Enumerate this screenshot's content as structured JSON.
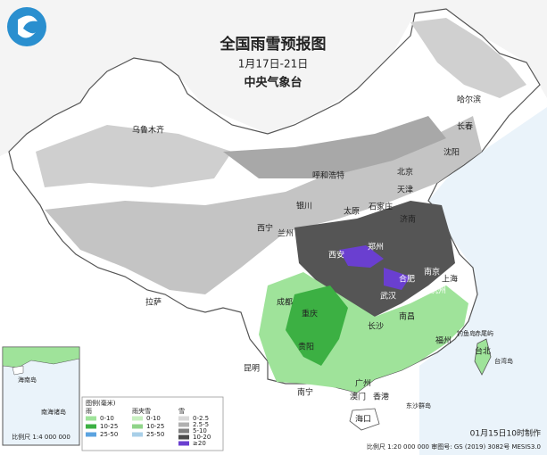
{
  "header": {
    "title": "全国雨雪预报图",
    "date_range": "1月17日-21日",
    "agency": "中央气象台"
  },
  "cities": [
    "哈尔滨",
    "长春",
    "沈阳",
    "北京",
    "天津",
    "石家庄",
    "太原",
    "呼和浩特",
    "济南",
    "郑州",
    "西安",
    "银川",
    "兰州",
    "西宁",
    "乌鲁木齐",
    "拉萨",
    "成都",
    "重庆",
    "贵阳",
    "昆明",
    "南宁",
    "广州",
    "澳门",
    "香港",
    "海口",
    "长沙",
    "南昌",
    "武汉",
    "合肥",
    "南京",
    "上海",
    "杭州",
    "福州",
    "台北",
    "台湾岛",
    "钓鱼岛",
    "赤尾屿",
    "东沙群岛"
  ],
  "inset": {
    "island": "海南岛",
    "title": "南海诸岛",
    "scale": "比例尺 1:4 000 000"
  },
  "legend": {
    "title": "图例(毫米)",
    "groups": [
      {
        "name": "雨",
        "items": [
          {
            "label": "0-10",
            "color": "#9fe39a"
          },
          {
            "label": "10-25",
            "color": "#3cb043"
          },
          {
            "label": "25-50",
            "color": "#5ba3e0"
          }
        ]
      },
      {
        "name": "雨夹雪",
        "items": [
          {
            "label": "0-10",
            "color": "#c8f0c0"
          },
          {
            "label": "10-25",
            "color": "#8fd488"
          },
          {
            "label": "25-50",
            "color": "#a8cfe8"
          }
        ]
      },
      {
        "name": "雪",
        "items": [
          {
            "label": "0-2.5",
            "color": "#d8d8d8"
          },
          {
            "label": "2.5-5",
            "color": "#b0b0b0"
          },
          {
            "label": "5-10",
            "color": "#808080"
          },
          {
            "label": "10-20",
            "color": "#4a4a4a"
          },
          {
            "label": "≥20",
            "color": "#6a3fd0"
          }
        ]
      }
    ]
  },
  "footer": {
    "issued": "01月15日10时制作",
    "scale": "比例尺 1:20 000 000  审图号: GS (2019) 3082号 MESIS3.0"
  }
}
